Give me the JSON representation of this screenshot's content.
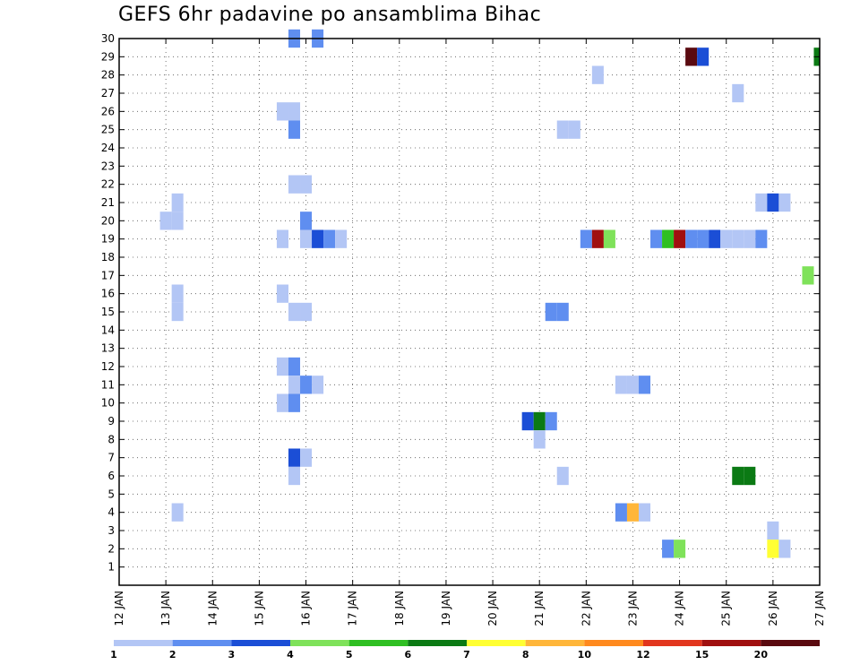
{
  "chart_data": {
    "type": "heatmap",
    "title": "GEFS 6hr padavine po ansamblima Bihac",
    "xlabel": "",
    "ylabel": "",
    "x_ticks": [
      "12 JAN",
      "13 JAN",
      "14 JAN",
      "15 JAN",
      "16 JAN",
      "17 JAN",
      "18 JAN",
      "19 JAN",
      "20 JAN",
      "21 JAN",
      "22 JAN",
      "23 JAN",
      "24 JAN",
      "25 JAN",
      "26 JAN",
      "27 JAN"
    ],
    "xlim_days": [
      12,
      27
    ],
    "y_ticks": [
      1,
      2,
      3,
      4,
      5,
      6,
      7,
      8,
      9,
      10,
      11,
      12,
      13,
      14,
      15,
      16,
      17,
      18,
      19,
      20,
      21,
      22,
      23,
      24,
      25,
      26,
      27,
      28,
      29,
      30
    ],
    "ylim": [
      0,
      30
    ],
    "grid": true,
    "colorbar": {
      "labels": [
        "1",
        "2",
        "3",
        "4",
        "5",
        "6",
        "7",
        "8",
        "10",
        "12",
        "15",
        "20"
      ],
      "colors": [
        "#b3c6f5",
        "#5f8ef0",
        "#1b4ed6",
        "#7fe25a",
        "#2fbf22",
        "#0b7a14",
        "#ffff33",
        "#ffb63a",
        "#ff8a1e",
        "#e2361e",
        "#a01010",
        "#5a0a10"
      ]
    },
    "cells": [
      {
        "day": 15.75,
        "member": 30,
        "value": 2
      },
      {
        "day": 16.25,
        "member": 30,
        "value": 2
      },
      {
        "day": 24.25,
        "member": 29,
        "value": 20
      },
      {
        "day": 24.5,
        "member": 29,
        "value": 3
      },
      {
        "day": 27.0,
        "member": 29,
        "value": 6
      },
      {
        "day": 22.25,
        "member": 28,
        "value": 1
      },
      {
        "day": 25.25,
        "member": 27,
        "value": 1
      },
      {
        "day": 15.5,
        "member": 26,
        "value": 1
      },
      {
        "day": 15.75,
        "member": 26,
        "value": 1
      },
      {
        "day": 15.75,
        "member": 25,
        "value": 2
      },
      {
        "day": 21.5,
        "member": 25,
        "value": 1
      },
      {
        "day": 21.75,
        "member": 25,
        "value": 1
      },
      {
        "day": 15.75,
        "member": 22,
        "value": 1
      },
      {
        "day": 16.0,
        "member": 22,
        "value": 1
      },
      {
        "day": 13.25,
        "member": 21,
        "value": 1
      },
      {
        "day": 25.75,
        "member": 21,
        "value": 1
      },
      {
        "day": 26.0,
        "member": 21,
        "value": 3
      },
      {
        "day": 26.25,
        "member": 21,
        "value": 1
      },
      {
        "day": 13.0,
        "member": 20,
        "value": 1
      },
      {
        "day": 13.25,
        "member": 20,
        "value": 1
      },
      {
        "day": 16.0,
        "member": 20,
        "value": 2
      },
      {
        "day": 15.5,
        "member": 19,
        "value": 1
      },
      {
        "day": 16.0,
        "member": 19,
        "value": 1
      },
      {
        "day": 16.25,
        "member": 19,
        "value": 3
      },
      {
        "day": 16.5,
        "member": 19,
        "value": 2
      },
      {
        "day": 16.75,
        "member": 19,
        "value": 1
      },
      {
        "day": 22.0,
        "member": 19,
        "value": 2
      },
      {
        "day": 22.25,
        "member": 19,
        "value": 15
      },
      {
        "day": 22.5,
        "member": 19,
        "value": 4
      },
      {
        "day": 23.5,
        "member": 19,
        "value": 2
      },
      {
        "day": 23.75,
        "member": 19,
        "value": 5
      },
      {
        "day": 24.0,
        "member": 19,
        "value": 15
      },
      {
        "day": 24.25,
        "member": 19,
        "value": 2
      },
      {
        "day": 24.5,
        "member": 19,
        "value": 2
      },
      {
        "day": 24.75,
        "member": 19,
        "value": 3
      },
      {
        "day": 25.0,
        "member": 19,
        "value": 1
      },
      {
        "day": 25.25,
        "member": 19,
        "value": 1
      },
      {
        "day": 25.5,
        "member": 19,
        "value": 1
      },
      {
        "day": 25.75,
        "member": 19,
        "value": 2
      },
      {
        "day": 26.75,
        "member": 17,
        "value": 4
      },
      {
        "day": 15.5,
        "member": 16,
        "value": 1
      },
      {
        "day": 13.25,
        "member": 16,
        "value": 1
      },
      {
        "day": 13.25,
        "member": 15,
        "value": 1
      },
      {
        "day": 15.75,
        "member": 15,
        "value": 1
      },
      {
        "day": 16.0,
        "member": 15,
        "value": 1
      },
      {
        "day": 21.25,
        "member": 15,
        "value": 2
      },
      {
        "day": 21.5,
        "member": 15,
        "value": 2
      },
      {
        "day": 15.5,
        "member": 12,
        "value": 1
      },
      {
        "day": 15.75,
        "member": 12,
        "value": 2
      },
      {
        "day": 15.75,
        "member": 11,
        "value": 1
      },
      {
        "day": 16.0,
        "member": 11,
        "value": 2
      },
      {
        "day": 16.25,
        "member": 11,
        "value": 1
      },
      {
        "day": 22.75,
        "member": 11,
        "value": 1
      },
      {
        "day": 23.0,
        "member": 11,
        "value": 1
      },
      {
        "day": 23.25,
        "member": 11,
        "value": 2
      },
      {
        "day": 15.5,
        "member": 10,
        "value": 1
      },
      {
        "day": 15.75,
        "member": 10,
        "value": 2
      },
      {
        "day": 20.75,
        "member": 9,
        "value": 3
      },
      {
        "day": 21.0,
        "member": 9,
        "value": 6
      },
      {
        "day": 21.25,
        "member": 9,
        "value": 2
      },
      {
        "day": 21.0,
        "member": 8,
        "value": 1
      },
      {
        "day": 15.75,
        "member": 7,
        "value": 3
      },
      {
        "day": 16.0,
        "member": 7,
        "value": 1
      },
      {
        "day": 15.75,
        "member": 6,
        "value": 1
      },
      {
        "day": 21.5,
        "member": 6,
        "value": 1
      },
      {
        "day": 25.25,
        "member": 6,
        "value": 6
      },
      {
        "day": 25.5,
        "member": 6,
        "value": 6
      },
      {
        "day": 13.25,
        "member": 4,
        "value": 1
      },
      {
        "day": 22.75,
        "member": 4,
        "value": 2
      },
      {
        "day": 23.0,
        "member": 4,
        "value": 8
      },
      {
        "day": 23.25,
        "member": 4,
        "value": 1
      },
      {
        "day": 26.0,
        "member": 3,
        "value": 1
      },
      {
        "day": 23.75,
        "member": 2,
        "value": 2
      },
      {
        "day": 24.0,
        "member": 2,
        "value": 4
      },
      {
        "day": 26.0,
        "member": 2,
        "value": 7
      },
      {
        "day": 26.25,
        "member": 2,
        "value": 1
      }
    ]
  }
}
